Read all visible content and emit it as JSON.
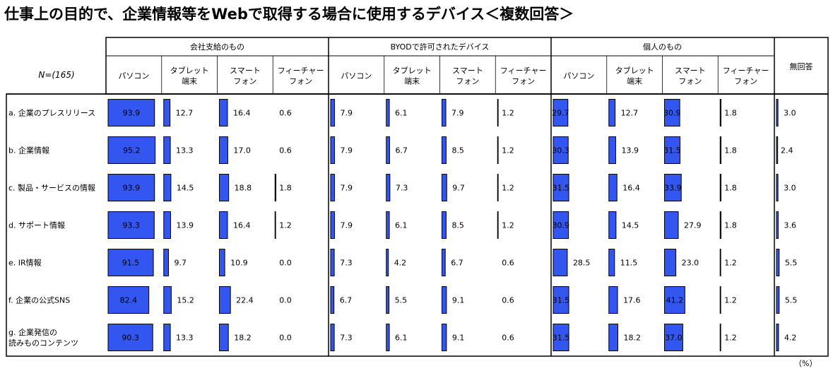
{
  "title": "仕事上の目的で、企業情報等をWebで取得する場合に使用するデバイス＜複数回答＞",
  "unit": "（%）",
  "chart_data": {
    "type": "bar",
    "n_label": "N=(165)",
    "groups": [
      {
        "name": "会社支給のもの",
        "columns": [
          "パソコン",
          "タブレット\n端末",
          "スマート\nフォン",
          "フィーチャー\nフォン"
        ]
      },
      {
        "name": "BYODで許可されたデバイス",
        "columns": [
          "パソコン",
          "タブレット\n端末",
          "スマート\nフォン",
          "フィーチャー\nフォン"
        ]
      },
      {
        "name": "個人のもの",
        "columns": [
          "パソコン",
          "タブレット\n端末",
          "スマート\nフォン",
          "フィーチャー\nフォン"
        ]
      },
      {
        "name": "",
        "columns": [
          "無回答"
        ]
      }
    ],
    "categories": [
      "a. 企業のプレスリリース",
      "b. 企業情報",
      "c. 製品・サービスの情報",
      "d. サポート情報",
      "e. IR情報",
      "f. 企業の公式SNS",
      "g. 企業発信の\n読みものコンテンツ"
    ],
    "values": [
      [
        93.9,
        12.7,
        16.4,
        0.6,
        7.9,
        6.1,
        7.9,
        1.2,
        29.7,
        12.7,
        30.9,
        1.8,
        3.0
      ],
      [
        95.2,
        13.3,
        17.0,
        0.6,
        7.9,
        6.7,
        8.5,
        1.2,
        30.3,
        13.9,
        31.5,
        1.8,
        2.4
      ],
      [
        93.9,
        14.5,
        18.8,
        1.8,
        7.9,
        7.3,
        9.7,
        1.2,
        31.5,
        16.4,
        33.9,
        1.8,
        3.0
      ],
      [
        93.3,
        13.9,
        16.4,
        1.2,
        7.9,
        6.1,
        8.5,
        1.2,
        30.9,
        14.5,
        27.9,
        1.8,
        3.6
      ],
      [
        91.5,
        9.7,
        10.9,
        0.0,
        7.3,
        4.2,
        6.7,
        0.6,
        28.5,
        11.5,
        23.0,
        1.2,
        5.5
      ],
      [
        82.4,
        15.2,
        22.4,
        0.0,
        6.7,
        5.5,
        9.1,
        0.6,
        31.5,
        17.6,
        41.2,
        1.2,
        5.5
      ],
      [
        90.3,
        13.3,
        18.2,
        0.0,
        7.3,
        6.1,
        9.1,
        0.6,
        31.5,
        18.2,
        37.0,
        1.2,
        4.2
      ]
    ],
    "value_labels": [
      [
        "93.9",
        "12.7",
        "16.4",
        "0.6",
        "7.9",
        "6.1",
        "7.9",
        "1.2",
        "29.7",
        "12.7",
        "30.9",
        "1.8",
        "3.0"
      ],
      [
        "95.2",
        "13.3",
        "17.0",
        "0.6",
        "7.9",
        "6.7",
        "8.5",
        "1.2",
        "30.3",
        "13.9",
        "31.5",
        "1.8",
        "2.4"
      ],
      [
        "93.9",
        "14.5",
        "18.8",
        "1.8",
        "7.9",
        "7.3",
        "9.7",
        "1.2",
        "31.5",
        "16.4",
        "33.9",
        "1.8",
        "3.0"
      ],
      [
        "93.3",
        "13.9",
        "16.4",
        "1.2",
        "7.9",
        "6.1",
        "8.5",
        "1.2",
        "30.9",
        "14.5",
        "27.9",
        "1.8",
        "3.6"
      ],
      [
        "91.5",
        "9.7",
        "10.9",
        "0.0",
        "7.3",
        "4.2",
        "6.7",
        "0.6",
        "28.5",
        "11.5",
        "23.0",
        "1.2",
        "5.5"
      ],
      [
        "82.4",
        "15.2",
        "22.4",
        "0.0",
        "6.7",
        "5.5",
        "9.1",
        "0.6",
        "31.5",
        "17.6",
        "41.2",
        "1.2",
        "5.5"
      ],
      [
        "90.3",
        "13.3",
        "18.2",
        "0.0",
        "7.3",
        "6.1",
        "9.1",
        "0.6",
        "31.5",
        "18.2",
        "37.0",
        "1.2",
        "4.2"
      ]
    ],
    "xlim": [
      0,
      100
    ],
    "bar_color": "#3355f0",
    "bar_border": "#000000"
  }
}
